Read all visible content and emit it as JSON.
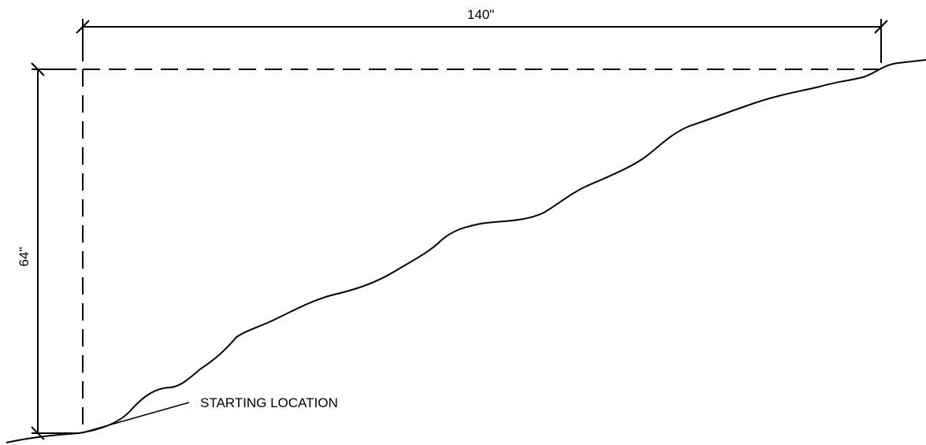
{
  "dimensions": {
    "horizontal": {
      "label": "140\"",
      "value": 140,
      "unit": "in"
    },
    "vertical": {
      "label": "64\"",
      "value": 64,
      "unit": "in"
    }
  },
  "annotation": {
    "label": "STARTING LOCATION"
  },
  "colors": {
    "ink": "#000000",
    "background": "#ffffff"
  }
}
